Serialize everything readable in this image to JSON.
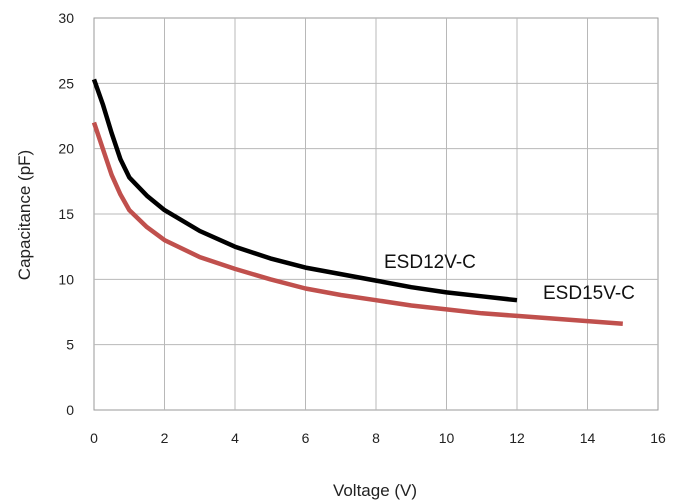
{
  "chart_data": {
    "type": "line",
    "xlabel": "Voltage (V)",
    "ylabel": "Capacitance (pF)",
    "xlim": [
      0,
      16
    ],
    "ylim": [
      0,
      30
    ],
    "x_ticks": [
      "0",
      "2",
      "4",
      "6",
      "8",
      "10",
      "12",
      "14",
      "16"
    ],
    "y_ticks": [
      "0",
      "5",
      "10",
      "15",
      "20",
      "25",
      "30"
    ],
    "grid": true,
    "series": [
      {
        "name": "ESD12V-C",
        "color": "#000000",
        "points": [
          [
            0,
            25.3
          ],
          [
            0.25,
            23.4
          ],
          [
            0.5,
            21.2
          ],
          [
            0.75,
            19.2
          ],
          [
            1,
            17.8
          ],
          [
            1.5,
            16.4
          ],
          [
            2,
            15.3
          ],
          [
            3,
            13.7
          ],
          [
            4,
            12.5
          ],
          [
            5,
            11.6
          ],
          [
            6,
            10.9
          ],
          [
            7,
            10.4
          ],
          [
            8,
            9.9
          ],
          [
            9,
            9.4
          ],
          [
            10,
            9.0
          ],
          [
            11,
            8.7
          ],
          [
            12,
            8.4
          ]
        ]
      },
      {
        "name": "ESD15V-C",
        "color": "#c0504d",
        "points": [
          [
            0,
            22.0
          ],
          [
            0.25,
            20.0
          ],
          [
            0.5,
            18.0
          ],
          [
            0.75,
            16.5
          ],
          [
            1,
            15.3
          ],
          [
            1.5,
            14.0
          ],
          [
            2,
            13.0
          ],
          [
            3,
            11.7
          ],
          [
            4,
            10.8
          ],
          [
            5,
            10.0
          ],
          [
            6,
            9.3
          ],
          [
            7,
            8.8
          ],
          [
            8,
            8.4
          ],
          [
            9,
            8.0
          ],
          [
            10,
            7.7
          ],
          [
            11,
            7.4
          ],
          [
            12,
            7.2
          ],
          [
            13,
            7.0
          ],
          [
            14,
            6.8
          ],
          [
            15,
            6.6
          ]
        ]
      }
    ]
  }
}
